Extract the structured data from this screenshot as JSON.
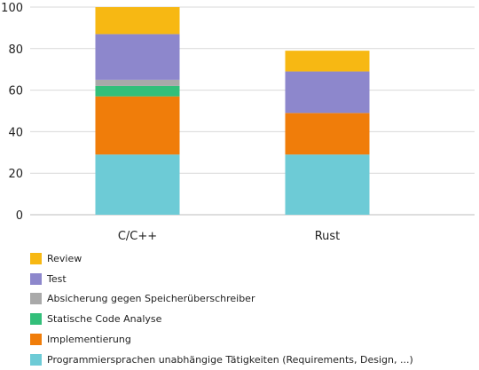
{
  "chart_data": {
    "type": "bar",
    "stacked": true,
    "categories": [
      "C/C++",
      "Rust"
    ],
    "ylim": [
      0,
      100
    ],
    "yticks": [
      0,
      20,
      40,
      60,
      80,
      100
    ],
    "grid": true,
    "legend_position": "bottom",
    "series": [
      {
        "name": "Programmiersprachen unabhängige Tätigkeiten (Requirements, Design, ...)",
        "color": "#6dcbd6",
        "values": [
          29,
          29
        ]
      },
      {
        "name": "Implementierung",
        "color": "#f07d0a",
        "values": [
          28,
          20
        ]
      },
      {
        "name": "Statische Code Analyse",
        "color": "#33bf7a",
        "values": [
          5,
          0
        ]
      },
      {
        "name": "Absicherung gegen Speicherüberschreiber",
        "color": "#a9a9a9",
        "values": [
          3,
          0
        ]
      },
      {
        "name": "Test",
        "color": "#8d87cc",
        "values": [
          22,
          20
        ]
      },
      {
        "name": "Review",
        "color": "#f7b813",
        "values": [
          13,
          10
        ]
      }
    ]
  }
}
